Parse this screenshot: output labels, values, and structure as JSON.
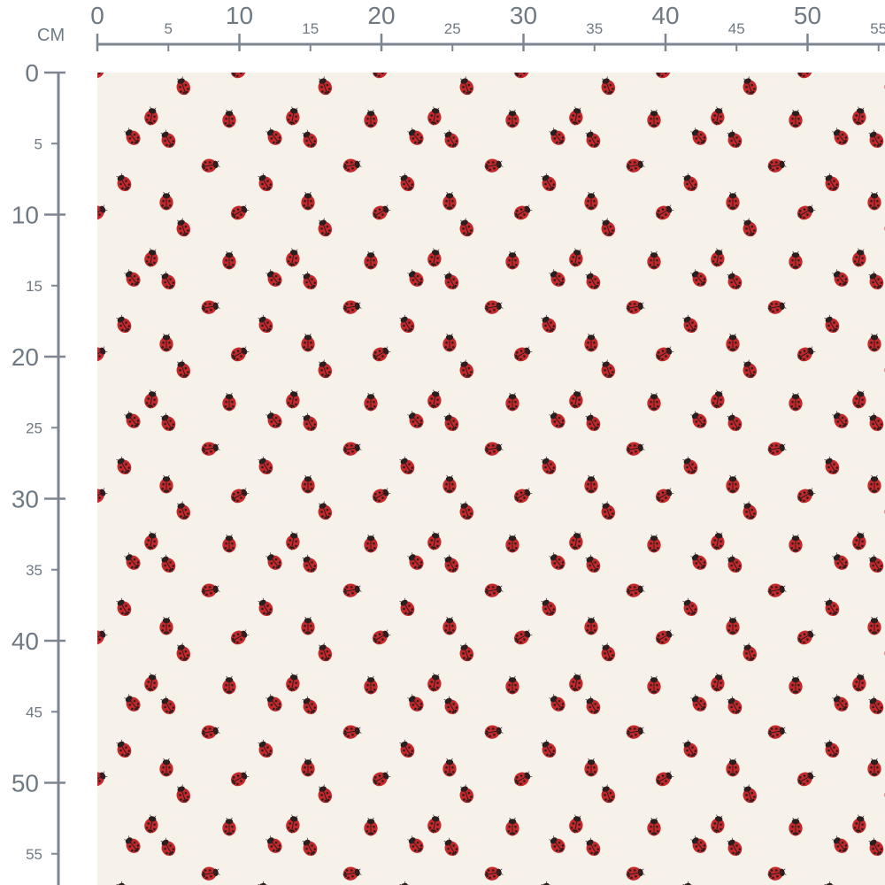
{
  "ruler": {
    "unit_label": "CM",
    "top_major_labels": [
      "0",
      "10",
      "20",
      "30",
      "40",
      "50"
    ],
    "top_minor_labels": [
      "5",
      "15",
      "25",
      "35",
      "45",
      "55"
    ],
    "left_major_labels": [
      "0",
      "10",
      "20",
      "30",
      "40",
      "50"
    ],
    "left_minor_labels": [
      "5",
      "15",
      "25",
      "35",
      "45",
      "55"
    ]
  },
  "fabric": {
    "motif": "ladybug-icon",
    "background_color": "#f6f2ea",
    "ladybug_color": "#c4282b",
    "spot_color": "#2a1e1e",
    "ruler_color": "#7d8690"
  }
}
